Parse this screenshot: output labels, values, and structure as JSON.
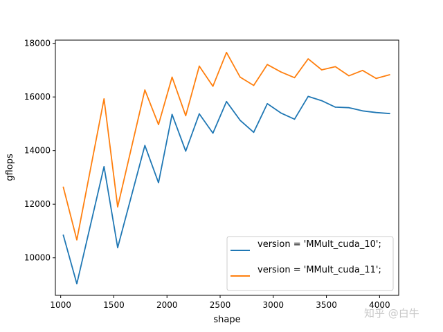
{
  "chart_data": {
    "type": "line",
    "title": "",
    "xlabel": "shape",
    "ylabel": "gflops",
    "xlim": [
      950,
      4180
    ],
    "ylim": [
      8600,
      18120
    ],
    "xticks": [
      1000,
      1500,
      2000,
      2500,
      3000,
      3500,
      4000
    ],
    "yticks": [
      10000,
      12000,
      14000,
      16000,
      18000
    ],
    "grid": false,
    "legend_position": "lower-right",
    "x": [
      1024,
      1152,
      1408,
      1536,
      1792,
      1920,
      2048,
      2176,
      2304,
      2432,
      2560,
      2688,
      2816,
      2944,
      3072,
      3200,
      3328,
      3456,
      3584,
      3712,
      3840,
      3968,
      4096
    ],
    "series": [
      {
        "name": "version = 'MMult_cuda_10';",
        "color": "#1f77b4",
        "values": [
          10850,
          9030,
          13400,
          10380,
          14190,
          12800,
          15350,
          13980,
          15370,
          14650,
          15830,
          15130,
          14680,
          15750,
          15400,
          15170,
          16020,
          15860,
          15620,
          15600,
          15480,
          15420,
          15380
        ]
      },
      {
        "name": "version = 'MMult_cuda_11';",
        "color": "#ff7f0e",
        "values": [
          12640,
          10670,
          15930,
          11900,
          16260,
          14970,
          16740,
          15300,
          17150,
          16400,
          17660,
          16740,
          16430,
          17210,
          16930,
          16720,
          17420,
          17010,
          17130,
          16790,
          16990,
          16690,
          16830
        ]
      }
    ]
  },
  "watermark": "知乎 @白牛"
}
